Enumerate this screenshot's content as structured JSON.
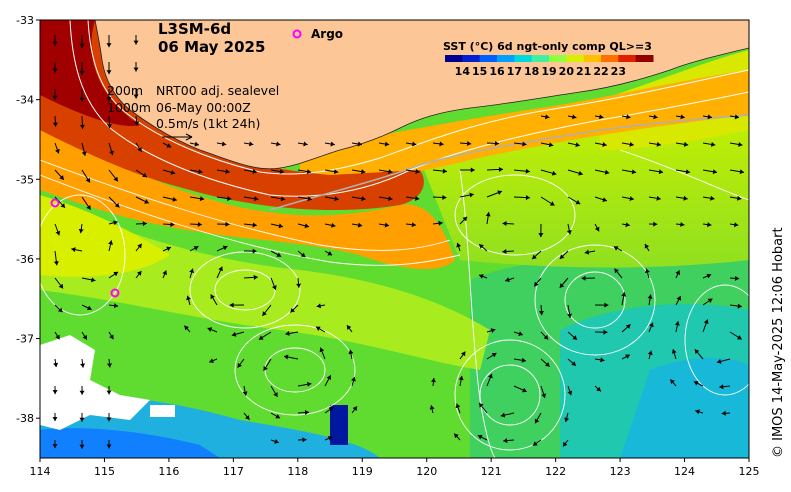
{
  "product": {
    "title": "L3SM-6d",
    "date": "06 May 2025"
  },
  "argo_label": "Argo",
  "colorbar": {
    "title": "SST (°C) 6d ngt-only comp QL>=3",
    "ticks": [
      "14",
      "15",
      "16",
      "17",
      "18",
      "19",
      "20",
      "21",
      "22",
      "23"
    ],
    "colors": [
      "#00008f",
      "#0020d0",
      "#0060ff",
      "#00a0ff",
      "#00d8e0",
      "#40f0a0",
      "#90ff40",
      "#d8f000",
      "#ffc000",
      "#ff7000",
      "#e02000",
      "#900000"
    ]
  },
  "annotations": {
    "depth_200": "200m",
    "depth_1000": "1000m",
    "sealevel": "NRT00 adj. sealevel",
    "time": "06-May 00:00Z",
    "scale": "0.5m/s (1kt 24h)"
  },
  "axes": {
    "lon_ticks": [
      "114",
      "115",
      "116",
      "117",
      "118",
      "119",
      "120",
      "121",
      "122",
      "123",
      "124",
      "125"
    ],
    "lat_ticks": [
      "-33",
      "-34",
      "-35",
      "-36",
      "-37",
      "-38"
    ]
  },
  "argo_floats": [
    {
      "lon": 114.23,
      "lat": -35.3
    },
    {
      "lon": 115.17,
      "lat": -36.43
    }
  ],
  "credit": "© IMOS 14-May-2025 12:06 Hobart",
  "colors": {
    "land": "#fdc696",
    "argo": "#ff00ff"
  }
}
